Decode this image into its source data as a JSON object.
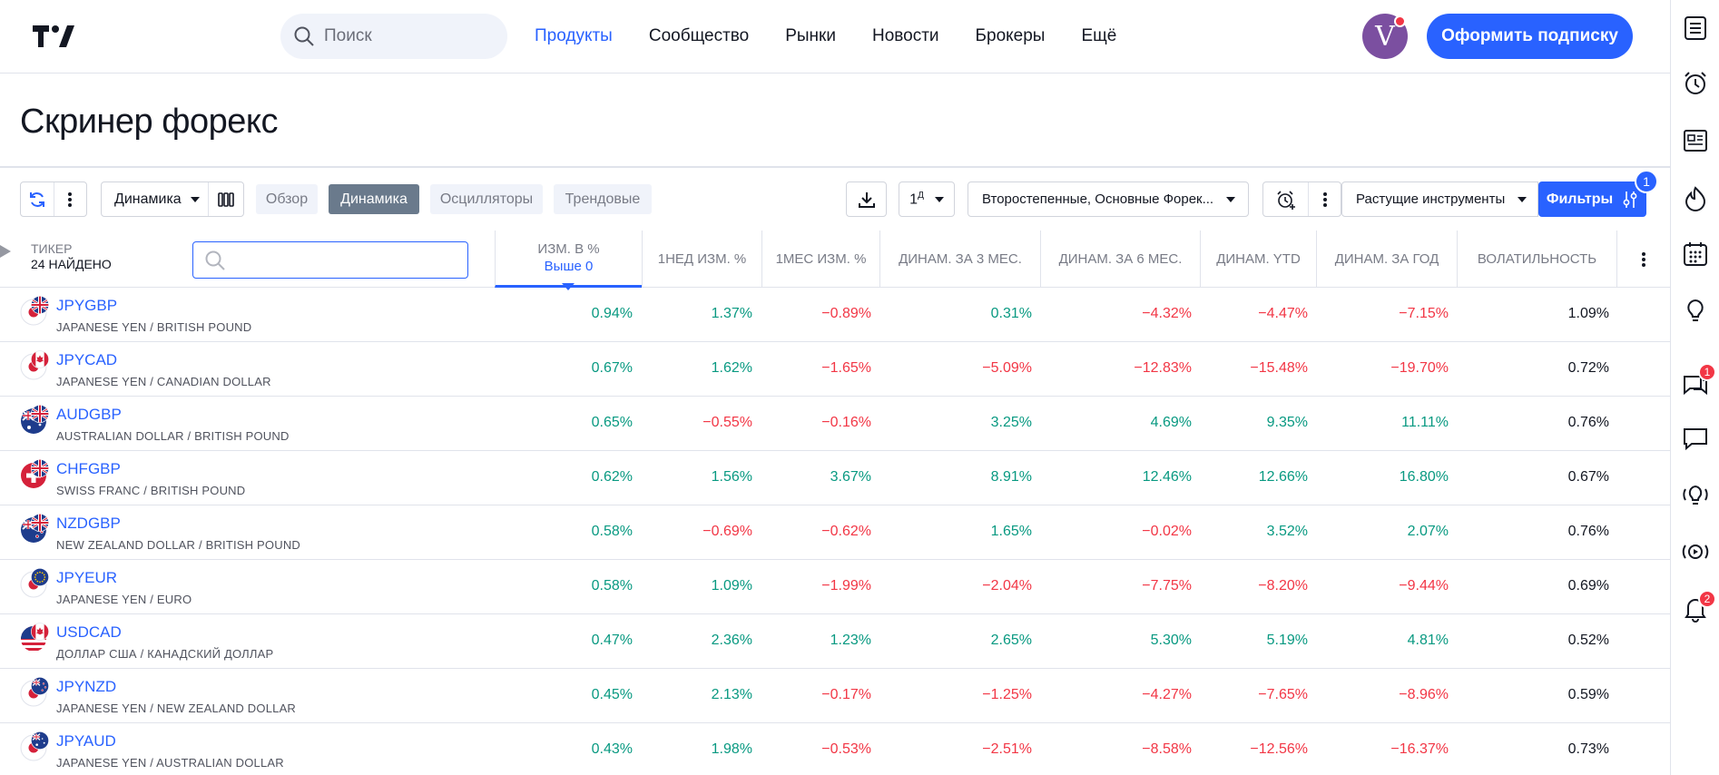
{
  "header": {
    "search_placeholder": "Поиск",
    "nav": [
      "Продукты",
      "Сообщество",
      "Рынки",
      "Новости",
      "Брокеры",
      "Ещё"
    ],
    "avatar_letter": "V",
    "subscribe_label": "Оформить подписку"
  },
  "page_title": "Скринер форекс",
  "toolbar": {
    "columns_select": "Динамика",
    "tabs": [
      "Обзор",
      "Динамика",
      "Осцилляторы",
      "Трендовые"
    ],
    "active_tab": "Динамика",
    "interval": "1",
    "interval_sup": "Д",
    "groups_select": "Второстепенные, Основные Форек...",
    "sort_select": "Растущие инструменты",
    "filters_label": "Фильтры",
    "filters_count": "1"
  },
  "sidebar": {
    "chat_badge": "1",
    "alerts_badge": "2"
  },
  "table": {
    "ticker_header": "Тикер",
    "found_count": "24 найдено",
    "columns": [
      {
        "label": "Изм. в %",
        "sub": "Выше 0"
      },
      {
        "label": "1нед изм. %",
        "sub": ""
      },
      {
        "label": "1мес изм. %",
        "sub": ""
      },
      {
        "label": "Динам. за 3 мес.",
        "sub": ""
      },
      {
        "label": "Динам. за 6 мес.",
        "sub": ""
      },
      {
        "label": "Динам. YTD",
        "sub": ""
      },
      {
        "label": "Динам. за год",
        "sub": ""
      },
      {
        "label": "Волатильность",
        "sub": ""
      }
    ],
    "rows": [
      {
        "symbol": "JPYGBP",
        "desc": "JAPANESE YEN / BRITISH POUND",
        "flags": [
          "jp",
          "gb"
        ],
        "values": [
          "0.94%",
          "1.37%",
          "−0.89%",
          "0.31%",
          "−4.32%",
          "−4.47%",
          "−7.15%",
          "1.09%"
        ]
      },
      {
        "symbol": "JPYCAD",
        "desc": "JAPANESE YEN / CANADIAN DOLLAR",
        "flags": [
          "jp",
          "ca"
        ],
        "values": [
          "0.67%",
          "1.62%",
          "−1.65%",
          "−5.09%",
          "−12.83%",
          "−15.48%",
          "−19.70%",
          "0.72%"
        ]
      },
      {
        "symbol": "AUDGBP",
        "desc": "AUSTRALIAN DOLLAR / BRITISH POUND",
        "flags": [
          "au",
          "gb"
        ],
        "values": [
          "0.65%",
          "−0.55%",
          "−0.16%",
          "3.25%",
          "4.69%",
          "9.35%",
          "11.11%",
          "0.76%"
        ]
      },
      {
        "symbol": "CHFGBP",
        "desc": "SWISS FRANC / BRITISH POUND",
        "flags": [
          "ch",
          "gb"
        ],
        "values": [
          "0.62%",
          "1.56%",
          "3.67%",
          "8.91%",
          "12.46%",
          "12.66%",
          "16.80%",
          "0.67%"
        ]
      },
      {
        "symbol": "NZDGBP",
        "desc": "NEW ZEALAND DOLLAR / BRITISH POUND",
        "flags": [
          "nz",
          "gb"
        ],
        "values": [
          "0.58%",
          "−0.69%",
          "−0.62%",
          "1.65%",
          "−0.02%",
          "3.52%",
          "2.07%",
          "0.76%"
        ]
      },
      {
        "symbol": "JPYEUR",
        "desc": "JAPANESE YEN / EURO",
        "flags": [
          "jp",
          "eu"
        ],
        "values": [
          "0.58%",
          "1.09%",
          "−1.99%",
          "−2.04%",
          "−7.75%",
          "−8.20%",
          "−9.44%",
          "0.69%"
        ]
      },
      {
        "symbol": "USDCAD",
        "desc": "ДОЛЛАР США / КАНАДСКИЙ ДОЛЛАР",
        "flags": [
          "us",
          "ca"
        ],
        "values": [
          "0.47%",
          "2.36%",
          "1.23%",
          "2.65%",
          "5.30%",
          "5.19%",
          "4.81%",
          "0.52%"
        ]
      },
      {
        "symbol": "JPYNZD",
        "desc": "JAPANESE YEN / NEW ZEALAND DOLLAR",
        "flags": [
          "jp",
          "nz"
        ],
        "values": [
          "0.45%",
          "2.13%",
          "−0.17%",
          "−1.25%",
          "−4.27%",
          "−7.65%",
          "−8.96%",
          "0.59%"
        ]
      },
      {
        "symbol": "JPYAUD",
        "desc": "JAPANESE YEN / AUSTRALIAN DOLLAR",
        "flags": [
          "jp",
          "au"
        ],
        "values": [
          "0.43%",
          "1.98%",
          "−0.53%",
          "−2.51%",
          "−8.58%",
          "−12.56%",
          "−16.37%",
          "0.73%"
        ]
      }
    ]
  },
  "colors": {
    "accent": "#2962ff",
    "positive": "#089981",
    "negative": "#f23645"
  }
}
